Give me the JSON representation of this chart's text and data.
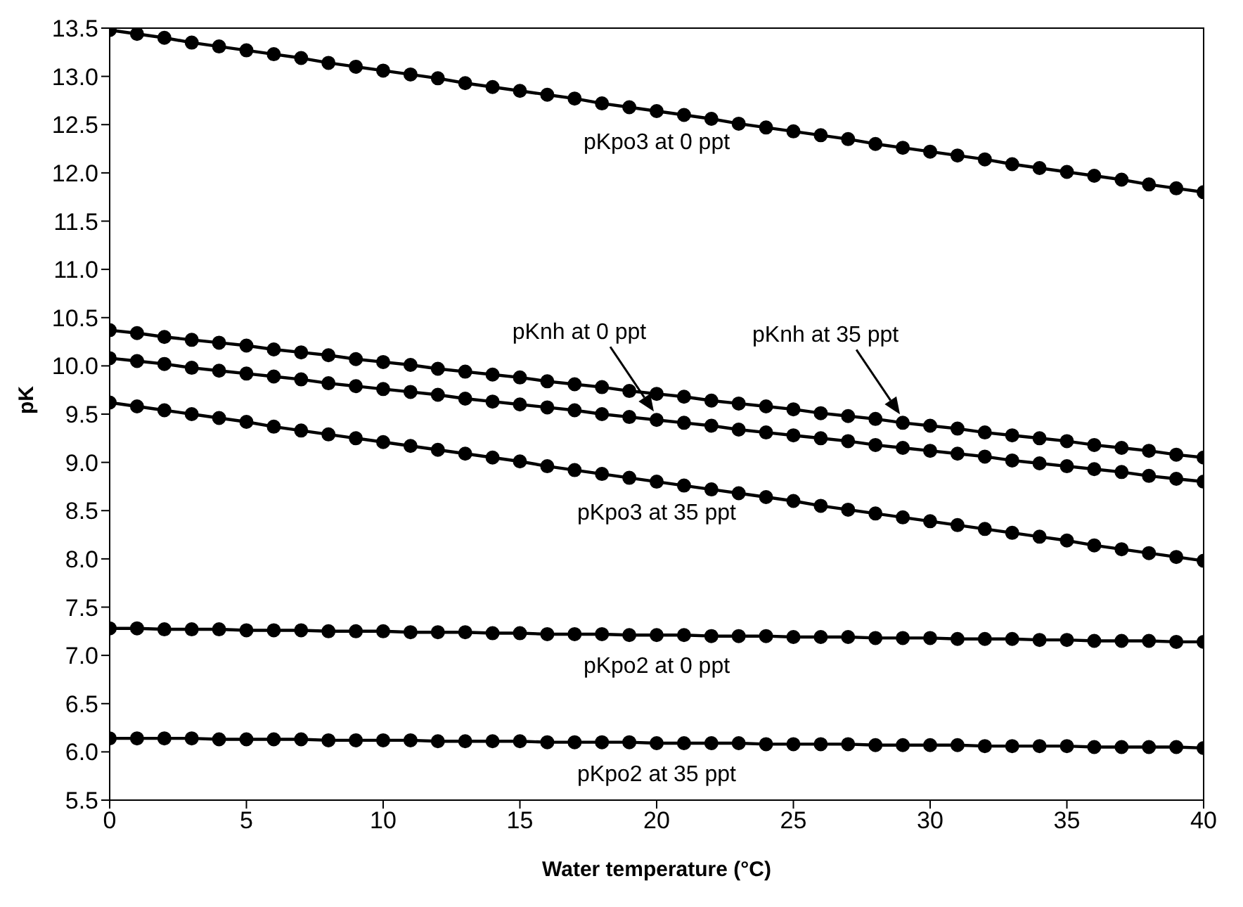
{
  "chart_data": {
    "type": "line",
    "xlabel": "Water temperature (°C)",
    "ylabel": "pK",
    "x": [
      0,
      1,
      2,
      3,
      4,
      5,
      6,
      7,
      8,
      9,
      10,
      11,
      12,
      13,
      14,
      15,
      16,
      17,
      18,
      19,
      20,
      21,
      22,
      23,
      24,
      25,
      26,
      27,
      28,
      29,
      30,
      31,
      32,
      33,
      34,
      35,
      36,
      37,
      38,
      39,
      40
    ],
    "xlim": [
      0,
      40
    ],
    "xticks": [
      0,
      5,
      10,
      15,
      20,
      25,
      30,
      35,
      40
    ],
    "ylim": [
      5.5,
      13.5
    ],
    "yticks": [
      5.5,
      {
        "value": 6,
        "label": "6.0"
      },
      6.5,
      {
        "value": 7,
        "label": "7.0"
      },
      7.5,
      {
        "value": 8,
        "label": "8.0"
      },
      8.5,
      {
        "value": 9,
        "label": "9.0"
      },
      9.5,
      {
        "value": 10,
        "label": "10.0"
      },
      10.5,
      {
        "value": 11,
        "label": "11.0"
      },
      11.5,
      {
        "value": 12,
        "label": "12.0"
      },
      12.5,
      {
        "value": 13,
        "label": "13.0"
      },
      13.5
    ],
    "grid": false,
    "legend": false,
    "marker": "circle",
    "line_style": "solid",
    "series": [
      {
        "name": "pKpo3 at 0 ppt",
        "color": "#000000",
        "values": [
          13.48,
          13.44,
          13.4,
          13.35,
          13.31,
          13.27,
          13.23,
          13.19,
          13.14,
          13.1,
          13.06,
          13.02,
          12.98,
          12.93,
          12.89,
          12.85,
          12.81,
          12.77,
          12.72,
          12.68,
          12.64,
          12.6,
          12.56,
          12.51,
          12.47,
          12.43,
          12.39,
          12.35,
          12.3,
          12.26,
          12.22,
          12.18,
          12.14,
          12.09,
          12.05,
          12.01,
          11.97,
          11.93,
          11.88,
          11.84,
          11.8
        ]
      },
      {
        "name": "pKnh at 35 ppt",
        "color": "#000000",
        "values": [
          10.37,
          10.34,
          10.3,
          10.27,
          10.24,
          10.21,
          10.17,
          10.14,
          10.11,
          10.07,
          10.04,
          10.01,
          9.97,
          9.94,
          9.91,
          9.88,
          9.84,
          9.81,
          9.78,
          9.74,
          9.71,
          9.68,
          9.64,
          9.61,
          9.58,
          9.55,
          9.51,
          9.48,
          9.45,
          9.41,
          9.38,
          9.35,
          9.31,
          9.28,
          9.25,
          9.22,
          9.18,
          9.15,
          9.12,
          9.08,
          9.05
        ]
      },
      {
        "name": "pKnh at 0 ppt",
        "color": "#000000",
        "values": [
          10.08,
          10.05,
          10.02,
          9.98,
          9.95,
          9.92,
          9.89,
          9.86,
          9.82,
          9.79,
          9.76,
          9.73,
          9.7,
          9.66,
          9.63,
          9.6,
          9.57,
          9.54,
          9.5,
          9.47,
          9.44,
          9.41,
          9.38,
          9.34,
          9.31,
          9.28,
          9.25,
          9.22,
          9.18,
          9.15,
          9.12,
          9.09,
          9.06,
          9.02,
          8.99,
          8.96,
          8.93,
          8.9,
          8.86,
          8.83,
          8.8
        ]
      },
      {
        "name": "pKpo3 at 35 ppt",
        "color": "#000000",
        "values": [
          9.62,
          9.58,
          9.54,
          9.5,
          9.46,
          9.42,
          9.37,
          9.33,
          9.29,
          9.25,
          9.21,
          9.17,
          9.13,
          9.09,
          9.05,
          9.01,
          8.96,
          8.92,
          8.88,
          8.84,
          8.8,
          8.76,
          8.72,
          8.68,
          8.64,
          8.6,
          8.55,
          8.51,
          8.47,
          8.43,
          8.39,
          8.35,
          8.31,
          8.27,
          8.23,
          8.19,
          8.14,
          8.1,
          8.06,
          8.02,
          7.98
        ]
      },
      {
        "name": "pKpo2 at 0 ppt",
        "color": "#000000",
        "values": [
          7.28,
          7.28,
          7.27,
          7.27,
          7.27,
          7.26,
          7.26,
          7.26,
          7.25,
          7.25,
          7.25,
          7.24,
          7.24,
          7.24,
          7.23,
          7.23,
          7.22,
          7.22,
          7.22,
          7.21,
          7.21,
          7.21,
          7.2,
          7.2,
          7.2,
          7.19,
          7.19,
          7.19,
          7.18,
          7.18,
          7.18,
          7.17,
          7.17,
          7.17,
          7.16,
          7.16,
          7.15,
          7.15,
          7.15,
          7.14,
          7.14
        ]
      },
      {
        "name": "pKpo2 at 35 ppt",
        "color": "#000000",
        "values": [
          6.14,
          6.14,
          6.14,
          6.14,
          6.13,
          6.13,
          6.13,
          6.13,
          6.12,
          6.12,
          6.12,
          6.12,
          6.11,
          6.11,
          6.11,
          6.11,
          6.1,
          6.1,
          6.1,
          6.1,
          6.09,
          6.09,
          6.09,
          6.09,
          6.08,
          6.08,
          6.08,
          6.08,
          6.07,
          6.07,
          6.07,
          6.07,
          6.06,
          6.06,
          6.06,
          6.06,
          6.05,
          6.05,
          6.05,
          6.05,
          6.04
        ]
      }
    ]
  }
}
